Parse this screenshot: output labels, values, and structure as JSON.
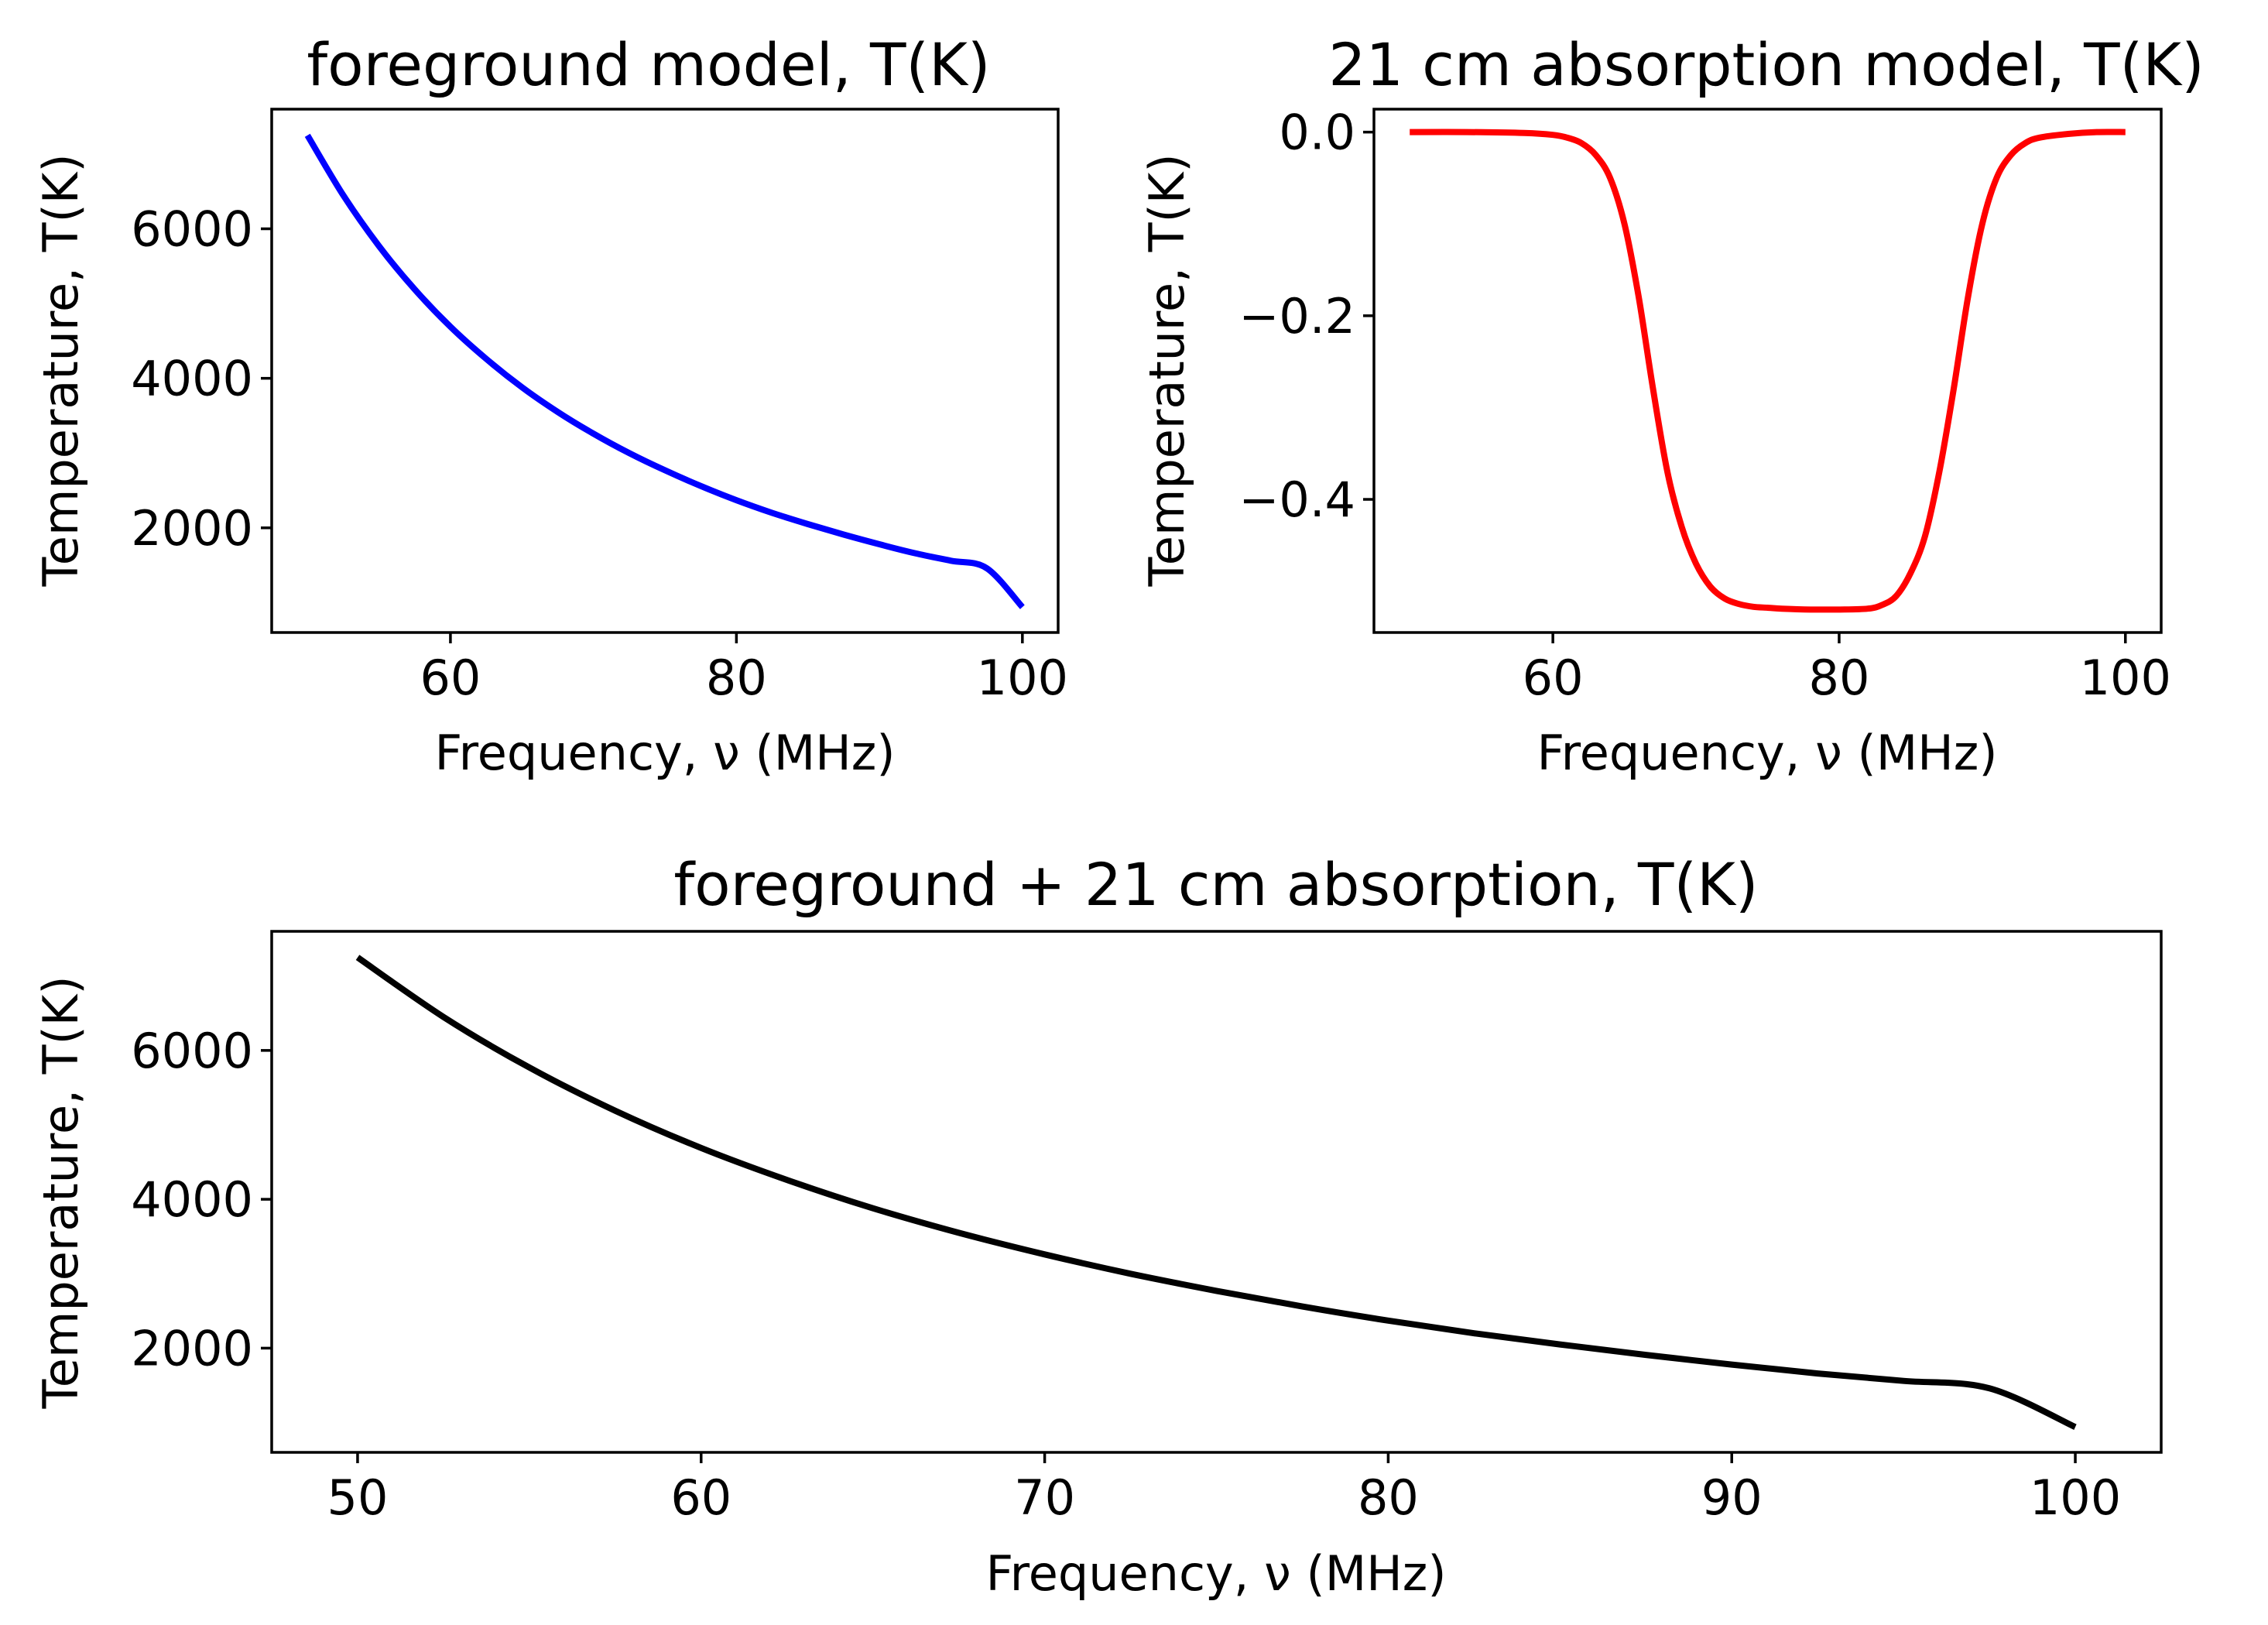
{
  "chart_data": [
    {
      "type": "line",
      "title": "foreground model, T(K)",
      "xlabel": "Frequency, ν (MHz)",
      "ylabel": "Temperature, T(K)",
      "xlim": [
        47.5,
        102.5
      ],
      "ylim": [
        600,
        7600
      ],
      "xticks": [
        60,
        80,
        100
      ],
      "yticks": [
        2000,
        4000,
        6000
      ],
      "color": "#0000ff",
      "series": [
        {
          "x": [
            50,
            52.5,
            55,
            57.5,
            60,
            62.5,
            65,
            67.5,
            70,
            72.5,
            75,
            77.5,
            80,
            82.5,
            85,
            87.5,
            90,
            92.5,
            95,
            97.5,
            100
          ],
          "values": [
            7250,
            6450,
            5770,
            5190,
            4690,
            4260,
            3880,
            3550,
            3260,
            3000,
            2770,
            2560,
            2370,
            2200,
            2050,
            1910,
            1780,
            1660,
            1560,
            1460,
            940
          ]
        }
      ]
    },
    {
      "type": "line",
      "title": "21 cm absorption model, T(K)",
      "xlabel": "Frequency, ν (MHz)",
      "ylabel": "Temperature, T(K)",
      "xlim": [
        47.5,
        102.5
      ],
      "ylim": [
        -0.545,
        0.025
      ],
      "xticks": [
        60,
        80,
        100
      ],
      "yticks": [
        0.0,
        -0.2,
        -0.4
      ],
      "ytick_labels": [
        "0.0",
        "−0.2",
        "−0.4"
      ],
      "color": "#ff0000",
      "series": [
        {
          "x": [
            50,
            54,
            58,
            60,
            61,
            62,
            63,
            64,
            65,
            66,
            67,
            68,
            69,
            70,
            71,
            72,
            73,
            74,
            75,
            76,
            78,
            80,
            82,
            83,
            84,
            85,
            86,
            87,
            88,
            89,
            90,
            91,
            92,
            93,
            94,
            96,
            98,
            100
          ],
          "values": [
            0.0,
            0.0,
            -0.001,
            -0.003,
            -0.006,
            -0.012,
            -0.025,
            -0.05,
            -0.1,
            -0.18,
            -0.28,
            -0.37,
            -0.43,
            -0.47,
            -0.495,
            -0.508,
            -0.514,
            -0.517,
            -0.518,
            -0.519,
            -0.52,
            -0.52,
            -0.519,
            -0.515,
            -0.505,
            -0.48,
            -0.44,
            -0.37,
            -0.28,
            -0.18,
            -0.1,
            -0.05,
            -0.025,
            -0.012,
            -0.006,
            -0.002,
            0.0,
            0.0
          ]
        }
      ]
    },
    {
      "type": "line",
      "title": "foreground + 21 cm absorption, T(K)",
      "xlabel": "Frequency, ν (MHz)",
      "ylabel": "Temperature, T(K)",
      "xlim": [
        47.5,
        102.5
      ],
      "ylim": [
        600,
        7600
      ],
      "xticks": [
        50,
        60,
        70,
        80,
        90,
        100
      ],
      "yticks": [
        2000,
        4000,
        6000
      ],
      "color": "#000000",
      "series": [
        {
          "x": [
            50,
            52.5,
            55,
            57.5,
            60,
            62.5,
            65,
            67.5,
            70,
            72.5,
            75,
            77.5,
            80,
            82.5,
            85,
            87.5,
            90,
            92.5,
            95,
            97.5,
            100
          ],
          "values": [
            7250,
            6450,
            5770,
            5190,
            4690,
            4260,
            3880,
            3550,
            3260,
            3000,
            2770,
            2560,
            2370,
            2200,
            2050,
            1910,
            1780,
            1660,
            1560,
            1460,
            940
          ]
        }
      ]
    }
  ]
}
